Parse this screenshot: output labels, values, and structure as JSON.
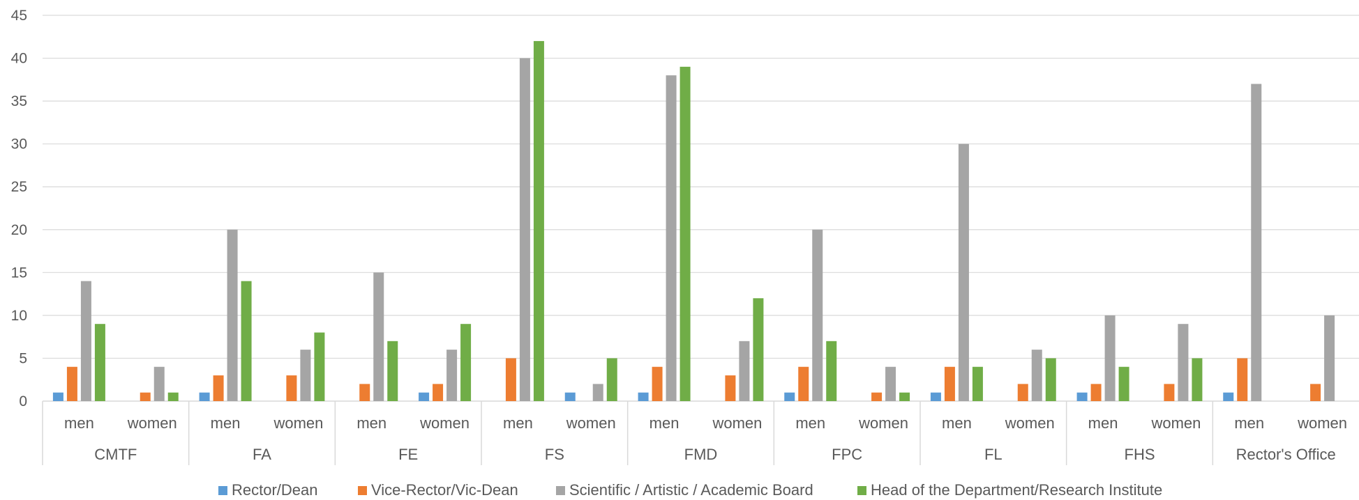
{
  "chart_data": {
    "type": "bar",
    "title": "",
    "xlabel": "",
    "ylabel": "",
    "ylim": [
      0,
      45
    ],
    "yticks": [
      0,
      5,
      10,
      15,
      20,
      25,
      30,
      35,
      40,
      45
    ],
    "grid": true,
    "legend_position": "bottom",
    "groups": [
      "CMTF",
      "FA",
      "FE",
      "FS",
      "FMD",
      "FPC",
      "FL",
      "FHS",
      "Rector's Office"
    ],
    "subcategories": [
      "men",
      "women"
    ],
    "series": [
      {
        "name": "Rector/Dean",
        "color": "#5b9bd5",
        "values": [
          1,
          0,
          1,
          0,
          0,
          1,
          0,
          1,
          1,
          0,
          1,
          0,
          1,
          0,
          1,
          0,
          1,
          0
        ]
      },
      {
        "name": "Vice-Rector/Vic-Dean",
        "color": "#ed7d31",
        "values": [
          4,
          1,
          3,
          3,
          2,
          2,
          5,
          0,
          4,
          3,
          4,
          1,
          4,
          2,
          2,
          2,
          5,
          2
        ]
      },
      {
        "name": "Scientific / Artistic / Academic Board",
        "color": "#a5a5a5",
        "values": [
          14,
          4,
          20,
          6,
          15,
          6,
          40,
          2,
          38,
          7,
          20,
          4,
          30,
          6,
          10,
          9,
          37,
          10
        ]
      },
      {
        "name": "Head of the Department/Research Institute",
        "color": "#70ad47",
        "values": [
          9,
          1,
          14,
          8,
          7,
          9,
          42,
          5,
          39,
          12,
          7,
          1,
          4,
          5,
          4,
          5,
          0,
          0
        ]
      }
    ]
  }
}
